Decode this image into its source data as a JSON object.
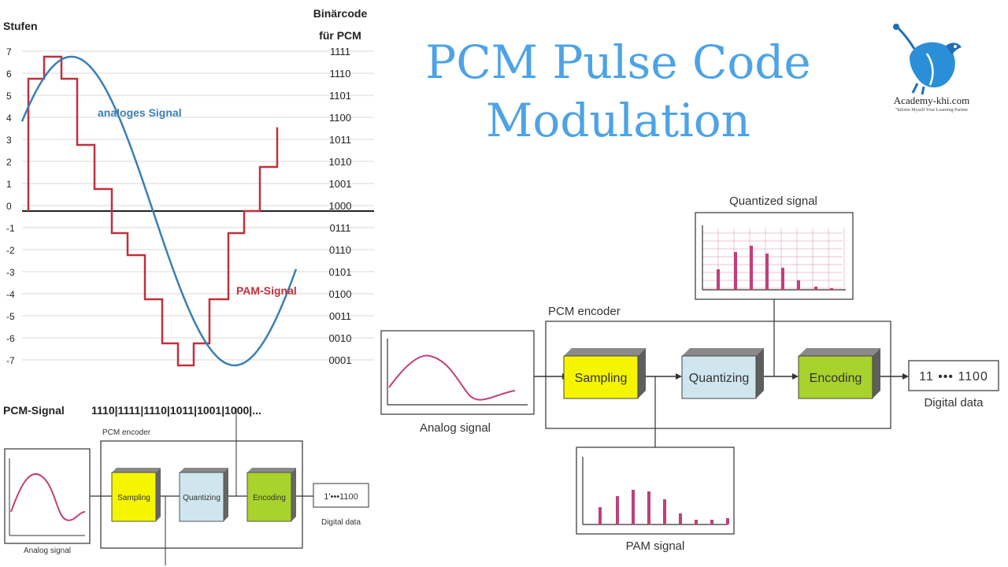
{
  "title": {
    "line1": "PCM Pulse Code",
    "line2": "Modulation"
  },
  "logo": {
    "name": "Academy-khi.com",
    "tagline": "\"Inform Myself  Your Learning Partner"
  },
  "left_chart": {
    "stufen_label": "Stufen",
    "code_header_line1": "Binärcode",
    "code_header_line2": "für PCM",
    "levels": [
      "7",
      "6",
      "5",
      "4",
      "3",
      "2",
      "1",
      "0",
      "-1",
      "-2",
      "-3",
      "-4",
      "-5",
      "-6",
      "-7"
    ],
    "codes": [
      "1111",
      "1110",
      "1101",
      "1100",
      "1011",
      "1010",
      "1001",
      "1000",
      "0111",
      "0110",
      "0101",
      "0100",
      "0011",
      "0010",
      "0001"
    ],
    "analog_label": "analoges Signal",
    "pam_label": "PAM-Signal",
    "pcm_signal_label": "PCM-Signal",
    "pcm_codes": "1110|1111|1110|1011|1001|1000|..."
  },
  "small_diagram": {
    "encoder_label": "PCM encoder",
    "sampling": "Sampling",
    "quantizing": "Quantizing",
    "encoding": "Encoding",
    "digital_value": "1'•••1100",
    "digital_label": "Digital data",
    "analog_label": "Analog signal"
  },
  "big_diagram": {
    "quantized_label": "Quantized signal",
    "encoder_label": "PCM encoder",
    "sampling": "Sampling",
    "quantizing": "Quantizing",
    "encoding": "Encoding",
    "digital_value": "11 ••• 1100",
    "digital_label": "Digital data",
    "analog_label": "Analog signal",
    "pam_label": "PAM signal"
  },
  "colors": {
    "title": "#4da3e6",
    "analog_curve": "#3a7fb5",
    "pam_curve": "#c0303c",
    "sampling_block": "#f5f500",
    "quantizing_block": "#cfe6ef",
    "encoding_block": "#a8d22c",
    "signal_pink": "#c0407a"
  }
}
